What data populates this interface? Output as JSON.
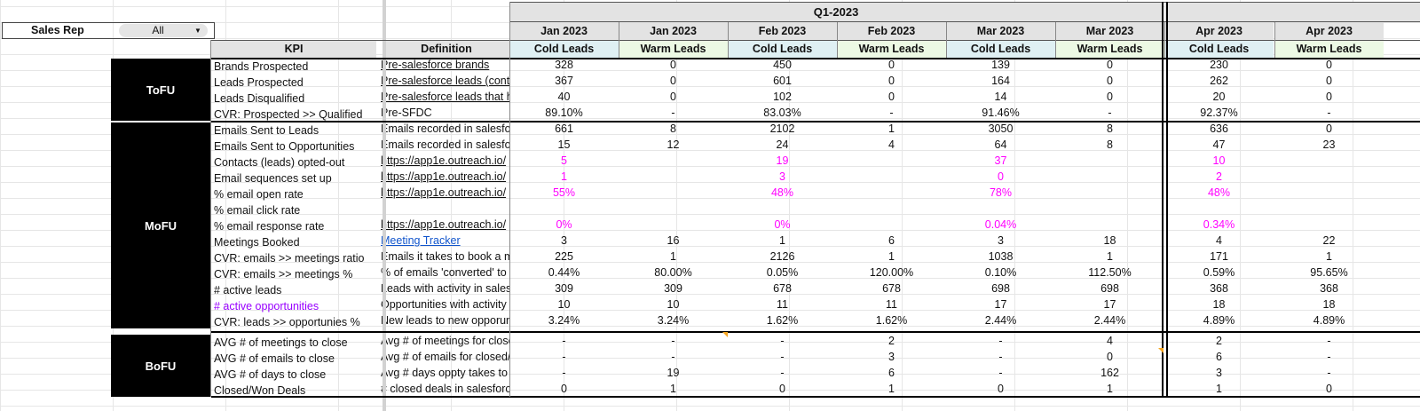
{
  "filter": {
    "label": "Sales Rep",
    "value": "All"
  },
  "quarter_title": "Q1-2023",
  "header": {
    "kpi": "KPI",
    "definition": "Definition"
  },
  "months": [
    "Jan 2023",
    "Jan 2023",
    "Feb 2023",
    "Feb 2023",
    "Mar 2023",
    "Mar 2023",
    "Apr 2023",
    "Apr 2023"
  ],
  "lead_types": [
    "Cold Leads",
    "Warm Leads",
    "Cold Leads",
    "Warm Leads",
    "Cold Leads",
    "Warm Leads",
    "Cold Leads",
    "Warm Leads"
  ],
  "stages": [
    {
      "name": "ToFU",
      "rows": [
        {
          "kpi": "Brands Prospected",
          "def": "Pre-salesforce brands",
          "def_style": "link",
          "values": [
            "328",
            "0",
            "450",
            "0",
            "139",
            "0",
            "230",
            "0"
          ]
        },
        {
          "kpi": "Leads Prospected",
          "def": "Pre-salesforce leads (conta",
          "def_style": "link",
          "values": [
            "367",
            "0",
            "601",
            "0",
            "164",
            "0",
            "262",
            "0"
          ]
        },
        {
          "kpi": "Leads Disqualified",
          "def": "Pre-salesforce leads that h",
          "def_style": "link",
          "values": [
            "40",
            "0",
            "102",
            "0",
            "14",
            "0",
            "20",
            "0"
          ]
        },
        {
          "kpi": "CVR: Prospected >> Qualified",
          "def": "Pre-SFDC",
          "def_style": "plain",
          "values": [
            "89.10%",
            "-",
            "83.03%",
            "-",
            "91.46%",
            "-",
            "92.37%",
            "-"
          ]
        }
      ]
    },
    {
      "name": "MoFU",
      "rows": [
        {
          "kpi": "Emails Sent to Leads",
          "def": "Emails recorded in salesfo",
          "def_style": "plain",
          "values": [
            "661",
            "8",
            "2102",
            "1",
            "3050",
            "8",
            "636",
            "0"
          ]
        },
        {
          "kpi": "Emails Sent to Opportunities",
          "def": "Emails recorded in salesfo",
          "def_style": "plain",
          "values": [
            "15",
            "12",
            "24",
            "4",
            "64",
            "8",
            "47",
            "23"
          ]
        },
        {
          "kpi": "Contacts (leads) opted-out",
          "def": "https://app1e.outreach.io/",
          "def_style": "link",
          "value_style": "pink",
          "values": [
            "5",
            "",
            "19",
            "",
            "37",
            "",
            "10",
            ""
          ]
        },
        {
          "kpi": "Email sequences set up",
          "def": "https://app1e.outreach.io/",
          "def_style": "link",
          "value_style": "pink",
          "values": [
            "1",
            "",
            "3",
            "",
            "0",
            "",
            "2",
            ""
          ]
        },
        {
          "kpi": "% email open rate",
          "def": "https://app1e.outreach.io/",
          "def_style": "link",
          "value_style": "pink",
          "values": [
            "55%",
            "",
            "48%",
            "",
            "78%",
            "",
            "48%",
            ""
          ]
        },
        {
          "kpi": "% email click rate",
          "def": "",
          "def_style": "plain",
          "values": [
            "",
            "",
            "",
            "",
            "",
            "",
            "",
            ""
          ]
        },
        {
          "kpi": "% email response rate",
          "def": "https://app1e.outreach.io/",
          "def_style": "link",
          "value_style": "pink",
          "values": [
            "0%",
            "",
            "0%",
            "",
            "0.04%",
            "",
            "0.34%",
            ""
          ]
        },
        {
          "kpi": "Meetings Booked",
          "def": "Meeting Tracker",
          "def_style": "blue",
          "values": [
            "3",
            "16",
            "1",
            "6",
            "3",
            "18",
            "4",
            "22"
          ]
        },
        {
          "kpi": "CVR: emails >> meetings ratio",
          "def": "Emails it takes to book a m",
          "def_style": "plain",
          "values": [
            "225",
            "1",
            "2126",
            "1",
            "1038",
            "1",
            "171",
            "1"
          ]
        },
        {
          "kpi": "CVR: emails >> meetings %",
          "def": "% of emails 'converted' to",
          "def_style": "plain",
          "values": [
            "0.44%",
            "80.00%",
            "0.05%",
            "120.00%",
            "0.10%",
            "112.50%",
            "0.59%",
            "95.65%"
          ]
        },
        {
          "kpi": "# active leads",
          "def": "Leads with activity in sales",
          "def_style": "plain",
          "values": [
            "309",
            "309",
            "678",
            "678",
            "698",
            "698",
            "368",
            "368"
          ]
        },
        {
          "kpi": "# active opportunities",
          "kpi_style": "purple",
          "def": "Opportunities with activity",
          "def_style": "plain",
          "values": [
            "10",
            "10",
            "11",
            "11",
            "17",
            "17",
            "18",
            "18"
          ]
        },
        {
          "kpi": "CVR: leads >> opportunies %",
          "def": "New leads to new opporuni",
          "def_style": "plain",
          "values": [
            "3.24%",
            "3.24%",
            "1.62%",
            "1.62%",
            "2.44%",
            "2.44%",
            "4.89%",
            "4.89%"
          ]
        }
      ]
    },
    {
      "name": "BoFU",
      "rows": [
        {
          "kpi": "AVG # of meetings to close",
          "def": "Avg # of meetings for close",
          "def_style": "plain",
          "values": [
            "-",
            "-",
            "-",
            "2",
            "-",
            "4",
            "2",
            "-"
          ]
        },
        {
          "kpi": "AVG # of emails to close",
          "def": "Avg # of emails for closed/",
          "def_style": "plain",
          "values": [
            "-",
            "-",
            "-",
            "3",
            "-",
            "0",
            "6",
            "-"
          ]
        },
        {
          "kpi": "AVG # of days to close",
          "def": "Avg # days oppty takes to",
          "def_style": "plain",
          "values": [
            "-",
            "19",
            "-",
            "6",
            "-",
            "162",
            "3",
            "-"
          ]
        },
        {
          "kpi": "Closed/Won Deals",
          "def": "# closed deals in salesforc",
          "def_style": "plain",
          "values": [
            "0",
            "1",
            "0",
            "1",
            "0",
            "1",
            "1",
            "0"
          ]
        }
      ]
    }
  ],
  "colors": {
    "cold_header": "#dff0f3",
    "warm_header": "#ecf9e4",
    "header_gray": "#e3e3e3",
    "stage_bg": "#000000",
    "pink_value": "#ff00ff",
    "link_blue": "#1155cc",
    "purple_text": "#9900ff"
  }
}
